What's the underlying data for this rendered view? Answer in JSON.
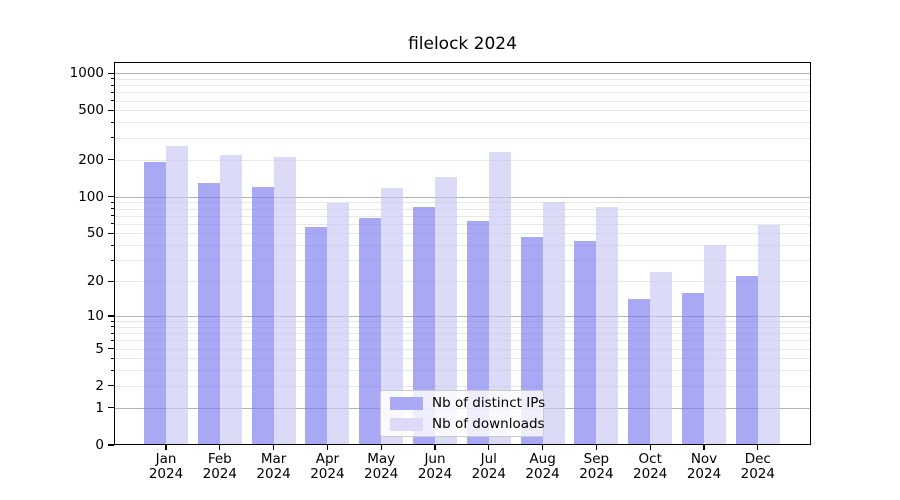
{
  "chart_data": {
    "type": "bar",
    "title": "filelock 2024",
    "categories": [
      "Jan",
      "Feb",
      "Mar",
      "Apr",
      "May",
      "Jun",
      "Jul",
      "Aug",
      "Sep",
      "Oct",
      "Nov",
      "Dec"
    ],
    "x_year": "2024",
    "series": [
      {
        "name": "Nb of distinct IPs",
        "values": [
          190,
          130,
          120,
          57,
          67,
          83,
          63,
          47,
          43,
          14,
          16,
          22
        ],
        "color": "rgba(121,121,238,0.65)",
        "legend_color": "#a9a9f4"
      },
      {
        "name": "Nb of downloads",
        "values": [
          260,
          218,
          210,
          88,
          117,
          145,
          232,
          91,
          83,
          24,
          40,
          59
        ],
        "color": "rgba(199,199,244,0.65)",
        "legend_color": "#dbdbf8"
      }
    ],
    "y_scale": "log1p",
    "ylim": [
      0,
      1233
    ],
    "y_ticks_labeled": [
      0,
      1,
      2,
      5,
      10,
      20,
      50,
      100,
      200,
      500,
      1000
    ],
    "y_ticks_major": [
      1,
      10,
      100,
      1000
    ],
    "y_ticks_minor": [
      2,
      3,
      4,
      5,
      6,
      7,
      8,
      9,
      20,
      30,
      40,
      50,
      60,
      70,
      80,
      90,
      200,
      300,
      400,
      500,
      600,
      700,
      800,
      900
    ],
    "grid": true,
    "legend_position": "lower-center-inside"
  },
  "colors": {
    "background": "#ffffff",
    "grid_major": "#b3b3b3",
    "grid_minor": "#e7e7e7",
    "spine": "#000000",
    "text": "#000000",
    "legend_border": "#cccccc"
  }
}
